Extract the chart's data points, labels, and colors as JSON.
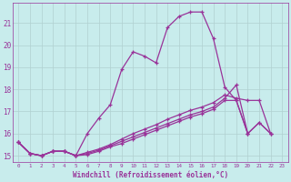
{
  "xlabel": "Windchill (Refroidissement éolien,°C)",
  "bg_color": "#c8ecec",
  "line_color": "#993399",
  "grid_color": "#b0d0d0",
  "xlim": [
    -0.5,
    23.5
  ],
  "ylim": [
    14.7,
    21.9
  ],
  "yticks": [
    15,
    16,
    17,
    18,
    19,
    20,
    21
  ],
  "xticks": [
    0,
    1,
    2,
    3,
    4,
    5,
    6,
    7,
    8,
    9,
    10,
    11,
    12,
    13,
    14,
    15,
    16,
    17,
    18,
    19,
    20,
    21,
    22,
    23
  ],
  "series1_x": [
    0,
    1,
    2,
    3,
    4,
    5,
    6,
    7,
    8,
    9,
    10,
    11,
    12,
    13,
    14,
    15,
    16,
    17,
    18,
    19,
    20
  ],
  "series1_y": [
    15.6,
    15.1,
    15.0,
    15.2,
    15.2,
    15.0,
    16.0,
    16.7,
    17.3,
    18.9,
    19.7,
    19.5,
    19.2,
    20.8,
    21.3,
    21.5,
    21.5,
    20.3,
    18.1,
    17.5,
    16.0
  ],
  "series2_x": [
    0,
    1,
    2,
    3,
    4,
    5,
    6,
    7,
    8,
    9,
    10,
    11,
    12,
    13,
    14,
    15,
    16,
    17,
    18,
    19,
    20,
    21,
    22
  ],
  "series2_y": [
    15.6,
    15.1,
    15.0,
    15.2,
    15.2,
    15.0,
    15.15,
    15.3,
    15.5,
    15.75,
    16.0,
    16.2,
    16.4,
    16.65,
    16.85,
    17.05,
    17.2,
    17.4,
    17.75,
    17.6,
    17.5,
    17.5,
    16.0
  ],
  "series3_x": [
    0,
    1,
    2,
    3,
    4,
    5,
    6,
    7,
    8,
    9,
    10,
    11,
    12,
    13,
    14,
    15,
    16,
    17,
    18,
    19,
    20,
    21,
    22
  ],
  "series3_y": [
    15.6,
    15.1,
    15.0,
    15.2,
    15.2,
    15.0,
    15.1,
    15.25,
    15.45,
    15.65,
    15.85,
    16.05,
    16.25,
    16.45,
    16.65,
    16.85,
    17.0,
    17.2,
    17.6,
    18.2,
    16.0,
    16.5,
    16.0
  ],
  "series4_x": [
    0,
    1,
    2,
    3,
    4,
    5,
    6,
    7,
    8,
    9,
    10,
    11,
    12,
    13,
    14,
    15,
    16,
    17,
    18,
    19,
    20,
    21,
    22
  ],
  "series4_y": [
    15.6,
    15.1,
    15.0,
    15.2,
    15.2,
    15.0,
    15.05,
    15.2,
    15.4,
    15.55,
    15.75,
    15.95,
    16.15,
    16.35,
    16.55,
    16.75,
    16.9,
    17.1,
    17.5,
    17.5,
    16.0,
    16.5,
    16.0
  ]
}
